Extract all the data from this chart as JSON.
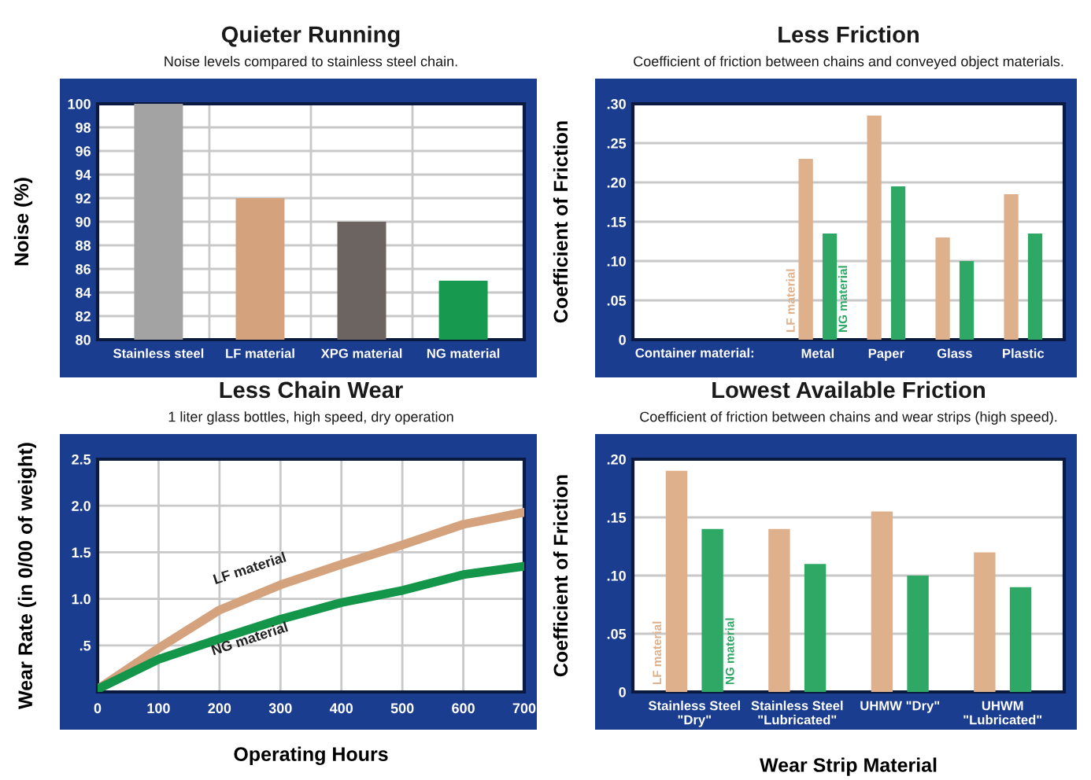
{
  "chart_data": [
    {
      "type": "bar",
      "title": "Quieter Running",
      "subtitle": "Noise levels compared to stainless steel chain.",
      "ylabel": "Noise (%)",
      "categories": [
        "Stainless steel",
        "LF material",
        "XPG material",
        "NG material"
      ],
      "values": [
        100,
        92,
        90,
        85
      ],
      "colors": [
        "#a3a3a3",
        "#d4a27c",
        "#6b6460",
        "#17994f"
      ],
      "ylim": [
        80,
        100
      ],
      "yticks": [
        80,
        82,
        84,
        86,
        88,
        90,
        92,
        94,
        96,
        98,
        100
      ],
      "grid": true
    },
    {
      "type": "bar",
      "title": "Less Friction",
      "subtitle": "Coefficient of friction between chains and conveyed object materials.",
      "ylabel": "Coefficient of Friction",
      "xlabel": "Container material:",
      "categories": [
        null,
        "Metal",
        "Paper",
        "Glass",
        "Plastic"
      ],
      "series": [
        {
          "name": "LF material",
          "color": "#deb08c",
          "values": [
            null,
            0.23,
            0.285,
            0.13,
            0.185
          ]
        },
        {
          "name": "NG material",
          "color": "#2fa865",
          "values": [
            null,
            0.135,
            0.195,
            0.1,
            0.135
          ]
        }
      ],
      "ylim": [
        0,
        0.3
      ],
      "yticks": [
        0,
        {
          "value": 0.05,
          "label": ".05"
        },
        {
          "value": 0.1,
          "label": ".10"
        },
        {
          "value": 0.15,
          "label": ".15"
        },
        {
          "value": 0.2,
          "label": ".20"
        },
        {
          "value": 0.25,
          "label": ".25"
        },
        {
          "value": 0.3,
          "label": ".30"
        }
      ],
      "grid": "y"
    },
    {
      "type": "line",
      "title": "Less Chain Wear",
      "subtitle": "1 liter glass bottles, high speed, dry operation",
      "xlabel": "Operating Hours",
      "ylabel": "Wear Rate (in 0/00 of weight)",
      "x": [
        0,
        100,
        200,
        300,
        400,
        500,
        600,
        700
      ],
      "series": [
        {
          "name": "LF material",
          "color": "#d4a27c",
          "values": [
            0.03,
            0.47,
            0.88,
            1.15,
            1.37,
            1.58,
            1.8,
            1.93
          ]
        },
        {
          "name": "NG material",
          "color": "#14964a",
          "values": [
            0.03,
            0.35,
            0.57,
            0.78,
            0.96,
            1.09,
            1.26,
            1.35
          ]
        }
      ],
      "xlim": [
        0,
        700
      ],
      "xticks": [
        0,
        100,
        200,
        300,
        400,
        500,
        600,
        700
      ],
      "ylim": [
        0,
        2.5
      ],
      "yticks": [
        {
          "value": 0.5,
          "label": ".5"
        },
        {
          "value": 1.0,
          "label": "1.0"
        },
        {
          "value": 1.5,
          "label": "1.5"
        },
        {
          "value": 2.0,
          "label": "2.0"
        },
        {
          "value": 2.5,
          "label": "2.5"
        }
      ],
      "grid": true
    },
    {
      "type": "bar",
      "title": "Lowest Available Friction",
      "subtitle": "Coefficient of friction between chains and wear strips (high speed).",
      "xlabel": "Wear Strip Material",
      "ylabel": "Coefficient of Friction",
      "categories": [
        "Stainless Steel \"Dry\"",
        "Stainless Steel \"Lubricated\"",
        "UHMW \"Dry\"",
        "UHWM \"Lubricated\""
      ],
      "series": [
        {
          "name": "LF material",
          "color": "#deb08c",
          "values": [
            0.19,
            0.14,
            0.155,
            0.12
          ]
        },
        {
          "name": "NG material",
          "color": "#2fa865",
          "values": [
            0.14,
            0.11,
            0.1,
            0.09
          ]
        }
      ],
      "ylim": [
        0,
        0.2
      ],
      "yticks": [
        0,
        {
          "value": 0.05,
          "label": ".05"
        },
        {
          "value": 0.1,
          "label": ".10"
        },
        {
          "value": 0.15,
          "label": ".15"
        },
        {
          "value": 0.2,
          "label": ".20"
        }
      ],
      "grid": "y"
    }
  ]
}
